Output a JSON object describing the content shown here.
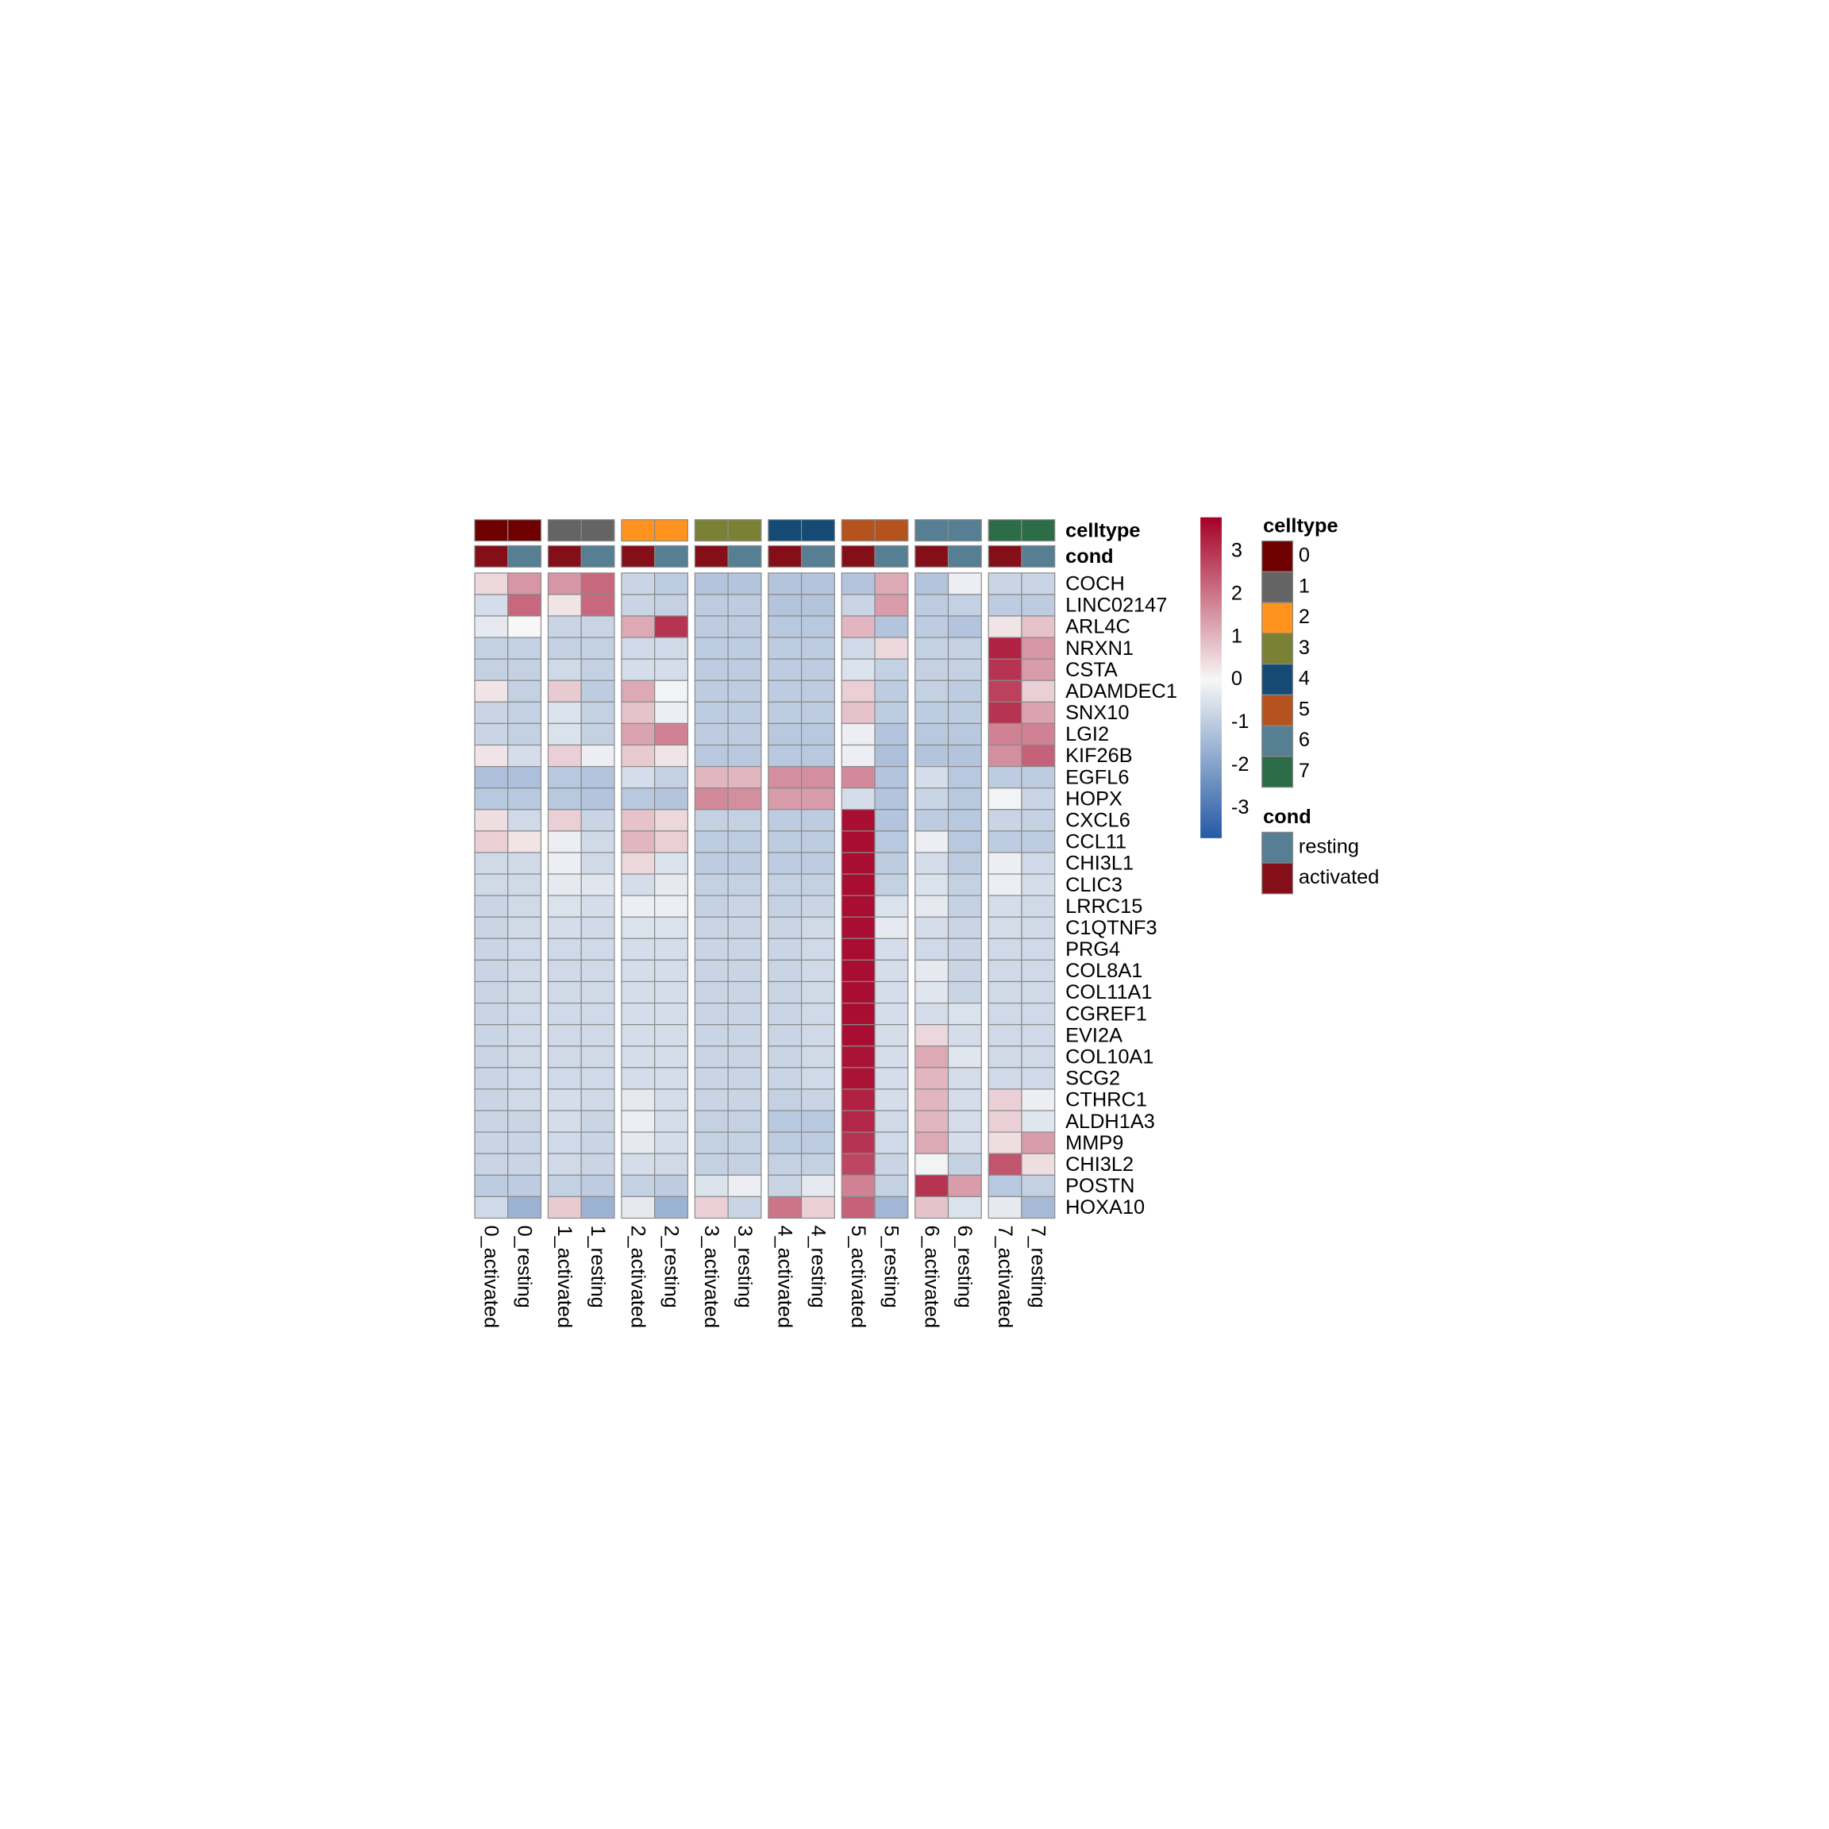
{
  "chart_data": {
    "type": "heatmap",
    "rows": [
      "COCH",
      "LINC02147",
      "ARL4C",
      "NRXN1",
      "CSTA",
      "ADAMDEC1",
      "SNX10",
      "LGI2",
      "KIF26B",
      "EGFL6",
      "HOPX",
      "CXCL6",
      "CCL11",
      "CHI3L1",
      "CLIC3",
      "LRRC15",
      "C1QTNF3",
      "PRG4",
      "COL8A1",
      "COL11A1",
      "CGREF1",
      "EVI2A",
      "COL10A1",
      "SCG2",
      "CTHRC1",
      "ALDH1A3",
      "MMP9",
      "CHI3L2",
      "POSTN",
      "HOXA10"
    ],
    "columns": [
      "0_activated",
      "0_resting",
      "1_activated",
      "1_resting",
      "2_activated",
      "2_resting",
      "3_activated",
      "3_resting",
      "4_activated",
      "4_resting",
      "5_activated",
      "5_resting",
      "6_activated",
      "6_resting",
      "7_activated",
      "7_resting"
    ],
    "values": [
      [
        0.5,
        1.5,
        1.5,
        2.2,
        -0.8,
        -1,
        -1.2,
        -1.2,
        -1.2,
        -1.2,
        -1.2,
        1.2,
        -1.2,
        -0.2,
        -0.8,
        -0.8
      ],
      [
        -0.6,
        2.2,
        0.3,
        2.2,
        -0.8,
        -0.9,
        -1,
        -1,
        -1.2,
        -1.2,
        -0.8,
        1.4,
        -1,
        -0.9,
        -1,
        -1
      ],
      [
        -0.3,
        0,
        -0.8,
        -0.8,
        1.2,
        3,
        -1,
        -1,
        -1.1,
        -1.1,
        1,
        -1.2,
        -1,
        -1.2,
        0.3,
        0.8
      ],
      [
        -0.9,
        -0.9,
        -0.9,
        -0.9,
        -0.7,
        -0.7,
        -1,
        -1,
        -1,
        -1,
        -0.7,
        0.5,
        -0.9,
        -0.9,
        3.3,
        1.5
      ],
      [
        -0.9,
        -0.9,
        -0.7,
        -0.9,
        -0.6,
        -0.6,
        -1,
        -1,
        -1,
        -1,
        -0.5,
        -0.9,
        -0.9,
        -0.9,
        3,
        1.4
      ],
      [
        0.3,
        -0.9,
        0.7,
        -1,
        1.2,
        -0.1,
        -1,
        -1,
        -1,
        -1,
        0.6,
        -1,
        -0.9,
        -1,
        2.8,
        0.6
      ],
      [
        -0.8,
        -0.9,
        -0.5,
        -0.9,
        0.8,
        -0.2,
        -1,
        -1,
        -1,
        -1,
        0.8,
        -1,
        -1,
        -1,
        3,
        1.3
      ],
      [
        -0.8,
        -0.9,
        -0.5,
        -0.9,
        1.3,
        1.8,
        -1,
        -1,
        -1.1,
        -1.1,
        -0.2,
        -1.2,
        -1.1,
        -1.1,
        1.8,
        1.8
      ],
      [
        0.3,
        -0.6,
        0.6,
        -0.2,
        0.7,
        0.3,
        -1.1,
        -1.1,
        -1.1,
        -1.1,
        -0.2,
        -1.3,
        -1.2,
        -1.2,
        1.6,
        2.3
      ],
      [
        -1.3,
        -1.3,
        -1.1,
        -1.2,
        -0.6,
        -0.9,
        1,
        1,
        1.6,
        1.6,
        1.7,
        -1.2,
        -0.6,
        -1.1,
        -1,
        -1
      ],
      [
        -1.1,
        -1.1,
        -1.1,
        -1.2,
        -1.1,
        -1.2,
        1.7,
        1.6,
        1.4,
        1.4,
        -0.6,
        -1.2,
        -0.8,
        -1.1,
        -0.1,
        -0.8
      ],
      [
        0.4,
        -0.7,
        0.6,
        -0.8,
        0.8,
        0.5,
        -0.9,
        -0.9,
        -1,
        -1,
        3.6,
        -1.2,
        -1,
        -1.1,
        -0.8,
        -0.9
      ],
      [
        0.6,
        0.3,
        -0.2,
        -0.7,
        1,
        0.6,
        -1,
        -1,
        -1,
        -1,
        3.6,
        -1.1,
        -0.2,
        -1.1,
        -1,
        -1
      ],
      [
        -0.7,
        -0.7,
        -0.2,
        -0.7,
        0.5,
        -0.5,
        -1,
        -1,
        -1,
        -1,
        3.6,
        -1,
        -0.6,
        -1,
        -0.2,
        -0.7
      ],
      [
        -0.7,
        -0.7,
        -0.3,
        -0.4,
        -0.6,
        -0.3,
        -0.9,
        -0.9,
        -0.9,
        -0.9,
        3.6,
        -0.9,
        -0.5,
        -0.9,
        -0.2,
        -0.6
      ],
      [
        -0.8,
        -0.7,
        -0.5,
        -0.6,
        -0.2,
        -0.2,
        -0.9,
        -0.8,
        -0.9,
        -0.8,
        3.6,
        -0.5,
        -0.3,
        -0.9,
        -0.6,
        -0.7
      ],
      [
        -0.8,
        -0.7,
        -0.6,
        -0.7,
        -0.5,
        -0.5,
        -0.8,
        -0.8,
        -0.8,
        -0.7,
        3.6,
        -0.3,
        -0.6,
        -0.8,
        -0.6,
        -0.7
      ],
      [
        -0.8,
        -0.7,
        -0.7,
        -0.7,
        -0.6,
        -0.6,
        -0.8,
        -0.8,
        -0.8,
        -0.7,
        3.6,
        -0.6,
        -0.7,
        -0.8,
        -0.7,
        -0.7
      ],
      [
        -0.8,
        -0.7,
        -0.7,
        -0.7,
        -0.6,
        -0.6,
        -0.8,
        -0.8,
        -0.8,
        -0.7,
        3.6,
        -0.6,
        -0.3,
        -0.8,
        -0.7,
        -0.7
      ],
      [
        -0.8,
        -0.7,
        -0.7,
        -0.7,
        -0.6,
        -0.6,
        -0.8,
        -0.8,
        -0.8,
        -0.7,
        3.6,
        -0.6,
        -0.4,
        -0.8,
        -0.7,
        -0.7
      ],
      [
        -0.8,
        -0.7,
        -0.7,
        -0.7,
        -0.6,
        -0.6,
        -0.8,
        -0.8,
        -0.8,
        -0.7,
        3.6,
        -0.6,
        -0.6,
        -0.5,
        -0.7,
        -0.7
      ],
      [
        -0.8,
        -0.7,
        -0.7,
        -0.7,
        -0.6,
        -0.6,
        -0.8,
        -0.8,
        -0.8,
        -0.7,
        3.6,
        -0.6,
        0.5,
        -0.6,
        -0.7,
        -0.7
      ],
      [
        -0.8,
        -0.7,
        -0.7,
        -0.7,
        -0.6,
        -0.6,
        -0.8,
        -0.8,
        -0.8,
        -0.7,
        3.5,
        -0.6,
        1.2,
        -0.4,
        -0.7,
        -0.7
      ],
      [
        -0.8,
        -0.7,
        -0.7,
        -0.7,
        -0.6,
        -0.6,
        -0.8,
        -0.8,
        -0.8,
        -0.7,
        3.5,
        -0.6,
        1,
        -0.6,
        -0.7,
        -0.7
      ],
      [
        -0.8,
        -0.7,
        -0.6,
        -0.7,
        -0.3,
        -0.6,
        -0.8,
        -0.8,
        -0.9,
        -0.8,
        3.3,
        -0.6,
        1,
        -0.6,
        0.6,
        -0.2
      ],
      [
        -0.8,
        -0.8,
        -0.6,
        -0.8,
        -0.2,
        -0.6,
        -0.9,
        -0.9,
        -1.1,
        -1.1,
        3.2,
        -0.7,
        1,
        -0.6,
        0.6,
        -0.4
      ],
      [
        -0.8,
        -0.8,
        -0.7,
        -0.8,
        -0.3,
        -0.6,
        -0.9,
        -0.9,
        -1,
        -1,
        3,
        -0.7,
        1.2,
        -0.6,
        0.4,
        1.4
      ],
      [
        -0.8,
        -0.8,
        -0.7,
        -0.8,
        -0.6,
        -0.7,
        -0.9,
        -0.9,
        -0.9,
        -0.9,
        2.7,
        -0.8,
        -0.1,
        -0.9,
        2.5,
        0.4
      ],
      [
        -1,
        -1,
        -0.9,
        -1,
        -0.9,
        -1,
        -0.5,
        -0.2,
        -0.8,
        -0.3,
        1.8,
        -0.9,
        3,
        1.4,
        -1.1,
        -0.9
      ],
      [
        -0.7,
        -1.6,
        0.7,
        -1.6,
        -0.3,
        -1.6,
        0.6,
        -0.8,
        2,
        0.6,
        2.3,
        -1.5,
        0.8,
        -0.5,
        -0.3,
        -1.4
      ]
    ],
    "zlim": [
      -3.7,
      3.8
    ],
    "zticks": [
      3,
      2,
      1,
      0,
      -1,
      -2,
      -3
    ],
    "colors": [
      "#2459a4",
      "#f7f7f7",
      "#a50026"
    ],
    "annotations": [
      {
        "name": "celltype",
        "values": [
          "0",
          "0",
          "1",
          "1",
          "2",
          "2",
          "3",
          "3",
          "4",
          "4",
          "5",
          "5",
          "6",
          "6",
          "7",
          "7"
        ],
        "levels": [
          "0",
          "1",
          "2",
          "3",
          "4",
          "5",
          "6",
          "7"
        ],
        "colors": [
          "#6e0000",
          "#646464",
          "#ff931e",
          "#7b8134",
          "#144a73",
          "#b5531e",
          "#567f93",
          "#2c6c47"
        ]
      },
      {
        "name": "cond",
        "values": [
          "activated",
          "resting",
          "activated",
          "resting",
          "activated",
          "resting",
          "activated",
          "resting",
          "activated",
          "resting",
          "activated",
          "resting",
          "activated",
          "resting",
          "activated",
          "resting"
        ],
        "levels": [
          "resting",
          "activated"
        ],
        "colors": [
          "#567f93",
          "#850f18"
        ]
      }
    ]
  }
}
